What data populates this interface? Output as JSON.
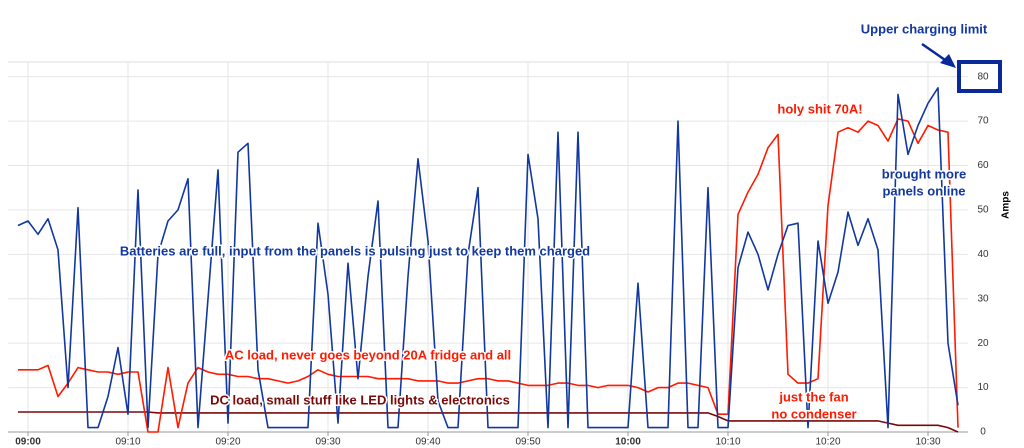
{
  "chart_data": {
    "type": "line",
    "y_label": "Amps",
    "x": [
      "08:59",
      "09:00",
      "09:01",
      "09:02",
      "09:03",
      "09:04",
      "09:05",
      "09:06",
      "09:07",
      "09:08",
      "09:09",
      "09:10",
      "09:11",
      "09:12",
      "09:13",
      "09:14",
      "09:15",
      "09:16",
      "09:17",
      "09:18",
      "09:19",
      "09:20",
      "09:21",
      "09:22",
      "09:23",
      "09:24",
      "09:25",
      "09:26",
      "09:27",
      "09:28",
      "09:29",
      "09:30",
      "09:31",
      "09:32",
      "09:33",
      "09:34",
      "09:35",
      "09:36",
      "09:37",
      "09:38",
      "09:39",
      "09:40",
      "09:41",
      "09:42",
      "09:43",
      "09:44",
      "09:45",
      "09:46",
      "09:47",
      "09:48",
      "09:49",
      "09:50",
      "09:51",
      "09:52",
      "09:53",
      "09:54",
      "09:55",
      "09:56",
      "09:57",
      "09:58",
      "09:59",
      "10:00",
      "10:01",
      "10:02",
      "10:03",
      "10:04",
      "10:05",
      "10:06",
      "10:07",
      "10:08",
      "10:09",
      "10:10",
      "10:11",
      "10:12",
      "10:13",
      "10:14",
      "10:15",
      "10:16",
      "10:17",
      "10:18",
      "10:19",
      "10:20",
      "10:21",
      "10:22",
      "10:23",
      "10:24",
      "10:25",
      "10:26",
      "10:27",
      "10:28",
      "10:29",
      "10:30",
      "10:31",
      "10:32",
      "10:33"
    ],
    "series": [
      {
        "color": "#1238a0",
        "values": [
          46.5,
          47.5,
          44.5,
          48,
          41,
          10,
          50.5,
          1,
          1,
          8,
          19,
          4,
          54.5,
          1,
          40,
          47.5,
          50,
          57,
          1,
          30,
          59,
          2,
          63,
          65,
          14,
          1,
          1,
          1,
          1,
          1,
          47,
          31,
          2,
          38,
          12,
          35,
          52,
          1,
          1,
          35,
          61.5,
          43,
          7,
          1,
          1,
          40,
          55,
          1,
          1,
          1,
          1,
          62.5,
          48,
          1,
          67.5,
          1,
          67.5,
          1,
          1,
          1,
          1,
          1,
          33.5,
          1,
          1,
          1,
          70,
          1,
          1,
          55,
          1,
          1,
          37,
          45,
          40,
          32,
          40,
          46.5,
          47,
          1,
          43,
          29,
          36,
          49.5,
          42,
          48,
          41,
          1,
          76,
          62.5,
          69,
          74,
          77.5,
          20,
          6
        ]
      },
      {
        "color": "#ff1a00",
        "values": [
          14,
          14,
          14,
          15,
          8,
          11,
          14.5,
          14,
          13.5,
          13.5,
          13,
          13.5,
          13.5,
          0,
          0,
          14.5,
          1,
          11,
          14.5,
          13.5,
          13,
          13,
          12.5,
          12.5,
          12,
          12,
          11.5,
          11,
          11.5,
          12.5,
          14,
          13,
          12.5,
          12.5,
          12.5,
          12.5,
          12,
          12,
          12,
          12,
          11.5,
          11.5,
          11.5,
          11,
          11,
          11.5,
          12,
          12,
          11.5,
          11.5,
          11,
          10.5,
          10.5,
          10.5,
          11,
          11,
          10.5,
          10.5,
          10,
          10.5,
          10.5,
          10.5,
          10,
          9,
          10,
          10,
          11,
          11,
          10.5,
          10,
          4,
          4,
          49,
          54,
          58,
          64,
          67,
          13,
          11,
          11,
          12,
          51,
          67.5,
          68.5,
          67.5,
          70,
          69,
          65.5,
          70.5,
          70,
          65,
          69,
          68,
          67.5,
          1
        ]
      },
      {
        "color": "#7a0a0a",
        "values": [
          4.5,
          4.5,
          4.5,
          4.5,
          4.5,
          4.5,
          4.5,
          4.5,
          4.5,
          4.5,
          4.5,
          4.5,
          4.5,
          4.5,
          4.3,
          4.3,
          4.3,
          4.3,
          4.3,
          4.3,
          4.3,
          4.3,
          4.3,
          4.3,
          4.3,
          4.3,
          4.3,
          4.3,
          4.3,
          4.3,
          4.3,
          4.3,
          4.3,
          4.3,
          4.3,
          4.3,
          4.3,
          4.3,
          4.3,
          4.3,
          4.3,
          4.3,
          4.3,
          4.3,
          4.3,
          4.3,
          4.3,
          4.3,
          4.3,
          4.3,
          4.3,
          4.3,
          4.3,
          4.3,
          4.3,
          4.3,
          4.3,
          4.3,
          4.3,
          4.3,
          4.3,
          4.3,
          4.3,
          4.3,
          4.3,
          4.3,
          4.3,
          4.3,
          4.3,
          4.3,
          3.5,
          2.5,
          2.5,
          2.5,
          2.5,
          2.5,
          2.5,
          2.5,
          2.5,
          2.5,
          2.5,
          2.5,
          2.5,
          2.5,
          2.5,
          2.5,
          2.5,
          2,
          1.5,
          1.5,
          1.5,
          1.5,
          1.5,
          1,
          0
        ]
      }
    ],
    "xlim": [
      "08:58",
      "10:34"
    ],
    "xticks": [
      "09:00",
      "09:10",
      "09:20",
      "09:30",
      "09:40",
      "09:50",
      "10:00",
      "10:10",
      "10:20",
      "10:30"
    ],
    "ylim": [
      0,
      83.3
    ],
    "yticks": [
      0,
      10,
      20,
      30,
      40,
      50,
      60,
      70,
      80
    ],
    "grid": true,
    "annotations": [
      {
        "lines": [
          "Upper charging limit"
        ],
        "color": "#1238a0"
      },
      {
        "lines": [
          "holy shit 70A!"
        ],
        "color": "#ff1a00"
      },
      {
        "lines": [
          "brought more",
          "panels online"
        ],
        "color": "#1238a0"
      },
      {
        "lines": [
          "Batteries are full, input from the panels is pulsing just to keep them charged"
        ],
        "color": "#1238a0"
      },
      {
        "lines": [
          "AC load, never goes beyond 20A fridge and all"
        ],
        "color": "#ff1a00"
      },
      {
        "lines": [
          "DC load, small stuff like LED lights & electronics"
        ],
        "color": "#7a0a0a"
      },
      {
        "lines": [
          "just the fan",
          "no condenser"
        ],
        "color": "#ff1a00"
      }
    ]
  }
}
